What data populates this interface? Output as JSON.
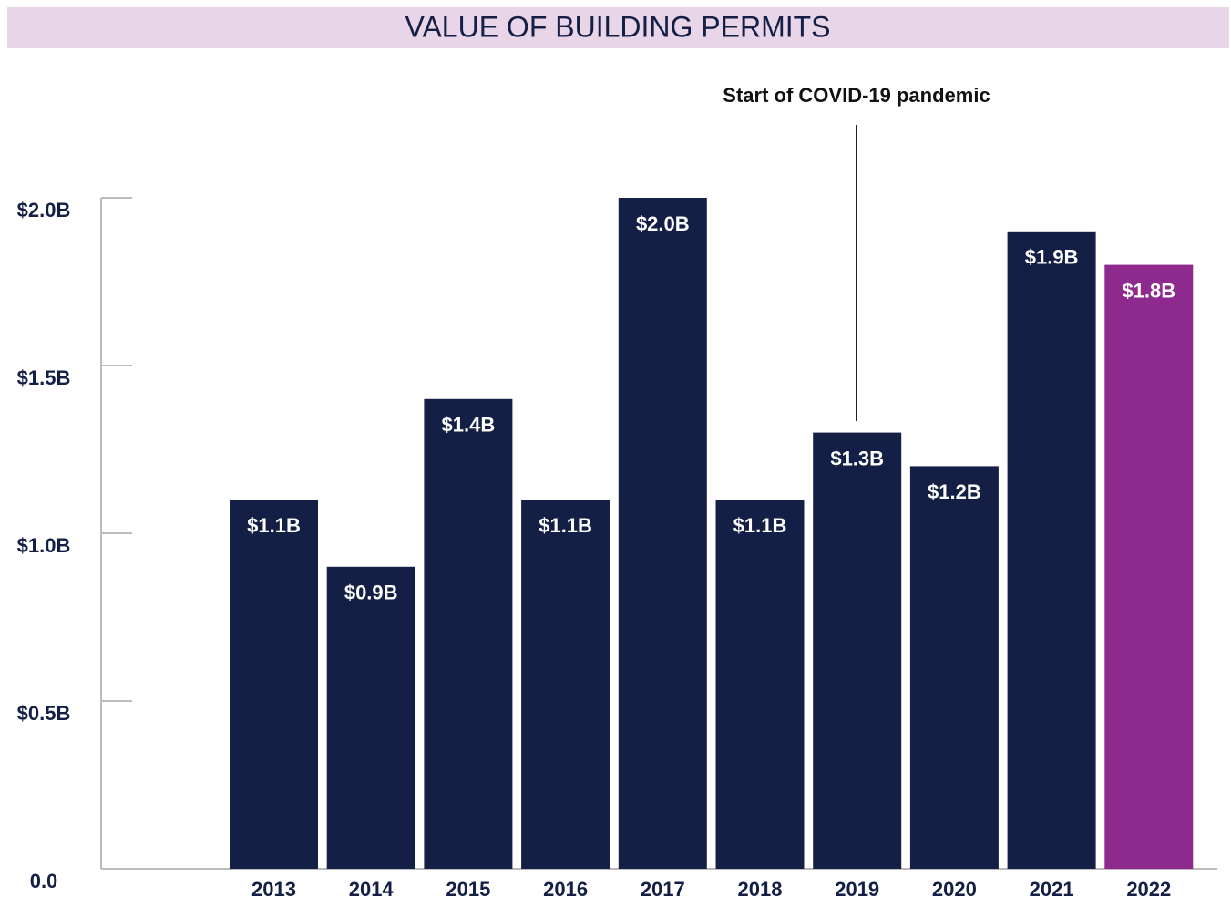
{
  "chart_data": {
    "type": "bar",
    "title": "VALUE OF BUILDING PERMITS",
    "annotation": "Start of COVID-19 pandemic",
    "categories": [
      "2013",
      "2014",
      "2015",
      "2016",
      "2017",
      "2018",
      "2019",
      "2020",
      "2021",
      "2022"
    ],
    "values": [
      1.1,
      0.9,
      1.4,
      1.1,
      2.0,
      1.1,
      1.3,
      1.2,
      1.9,
      1.8
    ],
    "value_labels": [
      "$1.1B",
      "$0.9B",
      "$1.4B",
      "$1.1B",
      "$2.0B",
      "$1.1B",
      "$1.3B",
      "$1.2B",
      "$1.9B",
      "$1.8B"
    ],
    "colors": [
      "#141f45",
      "#141f45",
      "#141f45",
      "#141f45",
      "#141f45",
      "#141f45",
      "#141f45",
      "#141f45",
      "#141f45",
      "#8e2a8e"
    ],
    "ylim": [
      0,
      2.0
    ],
    "yticks": [
      {
        "value": 0,
        "label": "0.0"
      },
      {
        "value": 0.5,
        "label": "$0.5B"
      },
      {
        "value": 1.0,
        "label": "$1.0B"
      },
      {
        "value": 1.5,
        "label": "$1.5B"
      },
      {
        "value": 2.0,
        "label": "$2.0B"
      }
    ],
    "grid": false
  }
}
